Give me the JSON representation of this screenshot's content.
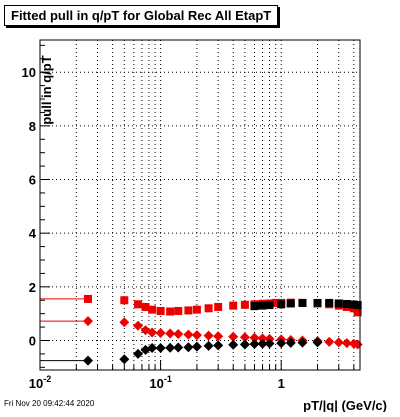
{
  "header": {
    "title": "Fitted pull in q/pT for Global Rec All EtapT"
  },
  "footer": {
    "timestamp": "Fri Nov 20 09:42:44 2020"
  },
  "chart_data": {
    "type": "scatter",
    "title": "Fitted pull in q/pT for Global Rec All EtapT",
    "xlabel": "pT/|q| (GeV/c)",
    "ylabel": "pull in q/pT",
    "xscale": "log",
    "xlim": [
      0.01,
      4.5
    ],
    "ylim": [
      -1.1,
      11.2
    ],
    "grid": true,
    "xticks": [
      {
        "v": 0.01,
        "base": "10",
        "exp": "-2"
      },
      {
        "v": 0.1,
        "base": "10",
        "exp": "-1"
      },
      {
        "v": 1,
        "base": "1",
        "exp": ""
      }
    ],
    "yticks": [
      0,
      2,
      4,
      6,
      8,
      10
    ],
    "series": [
      {
        "color": "#ee0000",
        "marker": "square",
        "x": [
          0.025,
          0.05,
          0.065,
          0.075,
          0.085,
          0.1,
          0.12,
          0.14,
          0.17,
          0.2,
          0.25,
          0.3,
          0.4,
          0.5,
          0.6,
          0.7,
          0.8,
          0.9,
          1.0,
          1.2,
          1.5,
          2.0,
          2.5,
          3.0,
          3.5,
          4.0,
          4.3
        ],
        "y": [
          1.55,
          1.5,
          1.35,
          1.25,
          1.15,
          1.1,
          1.08,
          1.1,
          1.12,
          1.15,
          1.2,
          1.25,
          1.3,
          1.33,
          1.35,
          1.37,
          1.38,
          1.4,
          1.4,
          1.41,
          1.4,
          1.38,
          1.35,
          1.3,
          1.25,
          1.2,
          1.05
        ]
      },
      {
        "color": "#000000",
        "marker": "square",
        "x": [
          0.6,
          0.7,
          0.8,
          1.0,
          1.2,
          1.5,
          2.0,
          2.5,
          3.0,
          3.5,
          4.0,
          4.3
        ],
        "y": [
          1.28,
          1.3,
          1.32,
          1.35,
          1.38,
          1.4,
          1.4,
          1.4,
          1.38,
          1.36,
          1.34,
          1.32
        ]
      },
      {
        "color": "#ee0000",
        "marker": "diamond",
        "x": [
          0.025,
          0.05,
          0.065,
          0.075,
          0.085,
          0.1,
          0.12,
          0.14,
          0.17,
          0.2,
          0.25,
          0.3,
          0.4,
          0.5,
          0.6,
          0.7,
          0.8,
          1.0,
          1.2,
          1.5,
          2.0,
          2.5,
          3.0,
          3.5,
          4.0,
          4.3
        ],
        "y": [
          0.72,
          0.68,
          0.55,
          0.38,
          0.3,
          0.28,
          0.26,
          0.24,
          0.22,
          0.2,
          0.18,
          0.16,
          0.14,
          0.12,
          0.1,
          0.08,
          0.06,
          0.04,
          0.02,
          0.0,
          -0.02,
          -0.05,
          -0.07,
          -0.1,
          -0.12,
          -0.15
        ]
      },
      {
        "color": "#000000",
        "marker": "diamond",
        "x": [
          0.025,
          0.05,
          0.065,
          0.075,
          0.085,
          0.1,
          0.12,
          0.14,
          0.17,
          0.2,
          0.25,
          0.3,
          0.4,
          0.5,
          0.6,
          0.7,
          0.8,
          1.0,
          1.2,
          1.5,
          2.0
        ],
        "y": [
          -0.75,
          -0.7,
          -0.5,
          -0.35,
          -0.28,
          -0.28,
          -0.27,
          -0.26,
          -0.25,
          -0.23,
          -0.2,
          -0.18,
          -0.16,
          -0.15,
          -0.13,
          -0.12,
          -0.11,
          -0.1,
          -0.09,
          -0.08,
          -0.07
        ]
      }
    ]
  }
}
